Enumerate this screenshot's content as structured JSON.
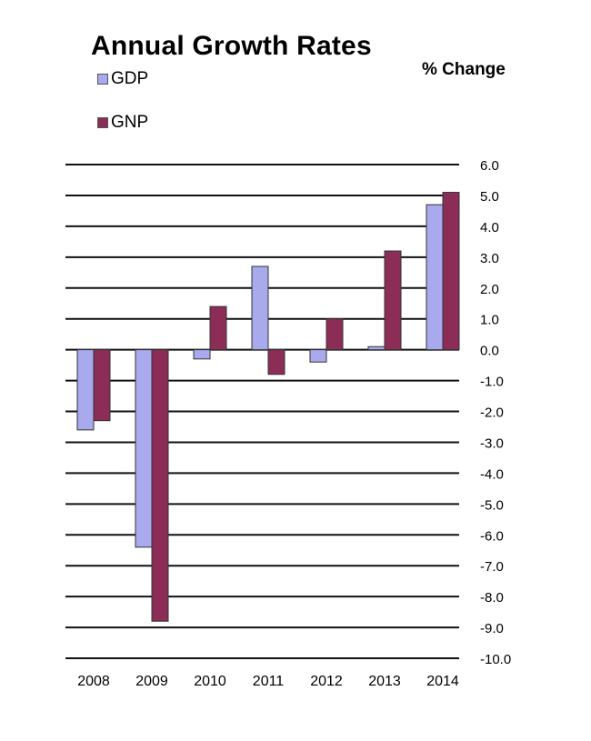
{
  "chart_data": {
    "type": "bar",
    "title": "Annual Growth Rates",
    "unit_label": "% Change",
    "categories": [
      "2008",
      "2009",
      "2010",
      "2011",
      "2012",
      "2013",
      "2014"
    ],
    "series": [
      {
        "name": "GDP",
        "color": "#a9a9ee",
        "values": [
          -2.6,
          -6.4,
          -0.3,
          2.7,
          -0.4,
          0.1,
          4.7
        ]
      },
      {
        "name": "GNP",
        "color": "#8b2d57",
        "values": [
          -2.3,
          -8.8,
          1.4,
          -0.8,
          1.0,
          3.2,
          5.1
        ]
      }
    ],
    "y_ticks": [
      "6.0",
      "5.0",
      "4.0",
      "3.0",
      "2.0",
      "1.0",
      "0.0",
      "-1.0",
      "-2.0",
      "-3.0",
      "-4.0",
      "-5.0",
      "-6.0",
      "-7.0",
      "-8.0",
      "-9.0",
      "-10.0"
    ],
    "ylim": [
      -10,
      6
    ],
    "xlabel": "",
    "ylabel": "",
    "grid": true,
    "legend_position": "top-left",
    "y_axis_side": "right"
  }
}
